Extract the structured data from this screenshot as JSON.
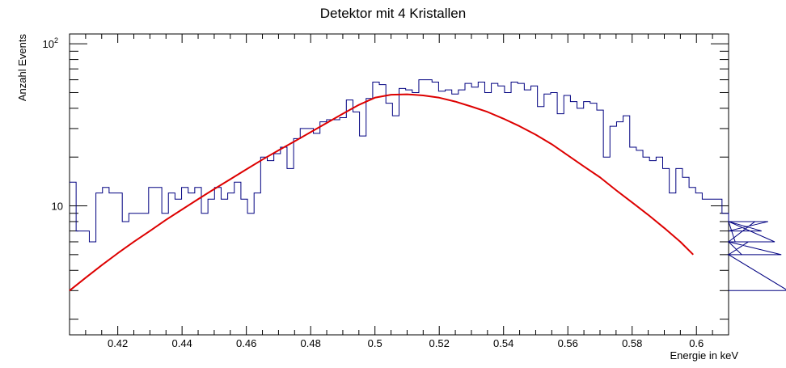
{
  "chart_data": {
    "type": "line",
    "title": "Detektor mit 4 Kristallen",
    "xlabel": "Energie in keV",
    "ylabel": "Anzahl Events",
    "x_range": [
      0.405,
      0.61
    ],
    "y_range": [
      1.6,
      115
    ],
    "y_scale": "log",
    "x_ticks": [
      "0.42",
      "0.44",
      "0.46",
      "0.48",
      "0.5",
      "0.52",
      "0.54",
      "0.56",
      "0.58",
      "0.6"
    ],
    "y_ticks": [
      "10",
      "10^2"
    ],
    "grid": false,
    "legend": "none",
    "series": [
      {
        "kind": "histogram-step",
        "color": "#000080",
        "bin_width": 0.00205,
        "x_start": 0.405,
        "values": [
          14,
          7,
          7,
          6,
          12,
          13,
          12,
          12,
          8,
          9,
          9,
          9,
          13,
          13,
          9,
          12,
          11,
          13,
          12,
          13,
          9,
          11,
          13,
          11,
          12,
          14,
          11,
          9,
          12,
          20,
          19,
          21,
          23,
          17,
          26,
          30,
          30,
          28,
          33,
          34,
          34,
          35,
          45,
          38,
          27,
          46,
          58,
          56,
          43,
          36,
          53,
          52,
          50,
          60,
          60,
          58,
          51,
          52,
          49,
          52,
          57,
          54,
          58,
          50,
          57,
          55,
          50,
          58,
          57,
          52,
          55,
          41,
          49,
          50,
          37,
          48,
          44,
          40,
          44,
          43,
          39,
          20,
          31,
          33,
          36,
          23,
          22,
          20,
          19,
          20,
          17,
          12,
          17,
          15,
          13,
          12,
          11,
          11,
          11,
          9,
          8,
          6,
          5,
          6,
          8,
          7,
          8,
          6,
          5,
          3
        ]
      },
      {
        "kind": "fit-curve",
        "color": "#dd0000",
        "x": [
          0.405,
          0.41,
          0.415,
          0.42,
          0.425,
          0.43,
          0.435,
          0.44,
          0.445,
          0.45,
          0.455,
          0.46,
          0.465,
          0.47,
          0.475,
          0.48,
          0.485,
          0.49,
          0.495,
          0.5,
          0.505,
          0.51,
          0.515,
          0.52,
          0.525,
          0.53,
          0.535,
          0.54,
          0.545,
          0.55,
          0.555,
          0.56,
          0.565,
          0.57,
          0.575,
          0.58,
          0.585,
          0.59,
          0.595,
          0.599
        ],
        "y": [
          3.0,
          3.6,
          4.3,
          5.1,
          6.0,
          7.0,
          8.2,
          9.5,
          11.0,
          12.7,
          14.6,
          16.8,
          19.3,
          22.0,
          25.0,
          28.5,
          32.5,
          37.0,
          42.0,
          46.5,
          48.5,
          48.8,
          48.0,
          46.5,
          44.0,
          41.0,
          38.0,
          34.5,
          31.0,
          27.5,
          24.0,
          20.5,
          17.5,
          15.0,
          12.5,
          10.5,
          8.8,
          7.3,
          6.0,
          5.0
        ]
      }
    ]
  }
}
